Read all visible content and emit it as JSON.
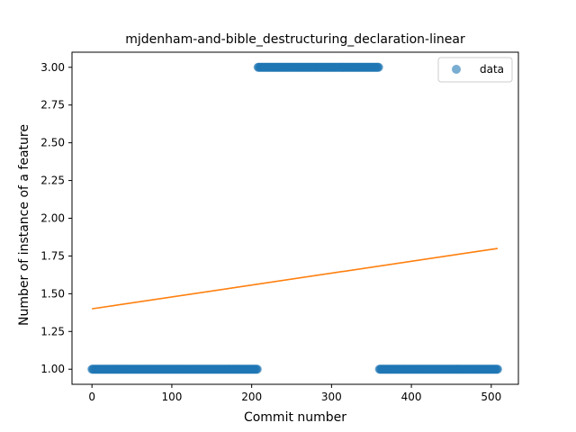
{
  "chart_data": {
    "type": "scatter",
    "title": "mjdenham-and-bible_destructuring_declaration-linear",
    "xlabel": "Commit number",
    "ylabel": "Number of instance of a feature",
    "xlim": [
      -25,
      534
    ],
    "ylim": [
      0.9,
      3.1
    ],
    "xticks": [
      0,
      100,
      200,
      300,
      400,
      500
    ],
    "yticks": [
      1.0,
      1.25,
      1.5,
      1.75,
      2.0,
      2.25,
      2.5,
      2.75,
      3.0
    ],
    "xtick_labels": [
      "0",
      "100",
      "200",
      "300",
      "400",
      "500"
    ],
    "ytick_labels": [
      "1.00",
      "1.25",
      "1.50",
      "1.75",
      "2.00",
      "2.25",
      "2.50",
      "2.75",
      "3.00"
    ],
    "series": [
      {
        "name": "data",
        "kind": "scatter",
        "color": "#1f77b4",
        "segments": [
          {
            "x_start": 0,
            "x_end": 207,
            "y": 1
          },
          {
            "x_start": 208,
            "x_end": 359,
            "y": 3
          },
          {
            "x_start": 360,
            "x_end": 508,
            "y": 1
          }
        ]
      },
      {
        "kind": "line",
        "color": "#ff7f0e",
        "x": [
          0,
          508
        ],
        "y": [
          1.4,
          1.8
        ]
      }
    ],
    "legend": {
      "position": "top-right",
      "entries": [
        "data"
      ]
    },
    "grid": false
  }
}
